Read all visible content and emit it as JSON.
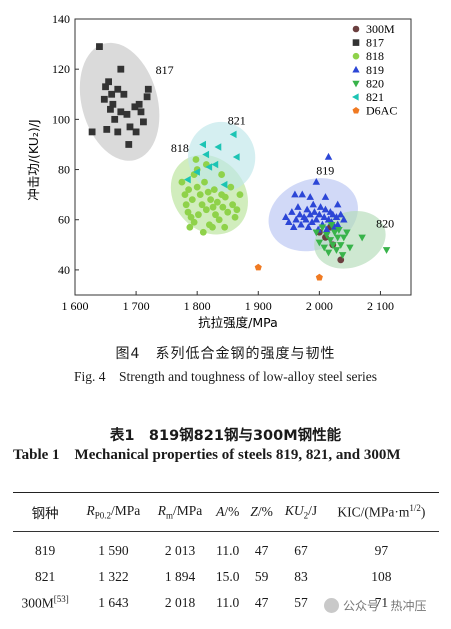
{
  "figure": {
    "caption_cn": "图4　系列低合金钢的强度与韧性",
    "caption_en": "Fig. 4　Strength and toughness of low-alloy steel series"
  },
  "chart_data": {
    "type": "scatter",
    "xlabel": "抗拉强度/MPa",
    "ylabel": "冲击功/(KU₂)/J",
    "xlim": [
      1600,
      2150
    ],
    "ylim": [
      30,
      140
    ],
    "x_ticks": [
      "1 600",
      "1 700",
      "1 800",
      "1 900",
      "2 000",
      "2 100"
    ],
    "y_ticks": [
      "40",
      "60",
      "80",
      "100",
      "120",
      "140"
    ],
    "legend_position": "top-right",
    "grid": false,
    "region_labels": [
      "817",
      "821",
      "818",
      "819",
      "820"
    ],
    "series": [
      {
        "name": "300M",
        "marker": "circle",
        "color": "#6b3f3f",
        "points": [
          [
            2018,
            57
          ],
          [
            2035,
            44
          ],
          [
            2022,
            50
          ],
          [
            2010,
            53
          ],
          [
            2000,
            55
          ]
        ]
      },
      {
        "name": "817",
        "marker": "square",
        "color": "#333333",
        "points": [
          [
            1640,
            129
          ],
          [
            1650,
            113
          ],
          [
            1655,
            115
          ],
          [
            1660,
            110
          ],
          [
            1648,
            108
          ],
          [
            1662,
            106
          ],
          [
            1670,
            112
          ],
          [
            1675,
            103
          ],
          [
            1680,
            110
          ],
          [
            1685,
            102
          ],
          [
            1690,
            97
          ],
          [
            1698,
            105
          ],
          [
            1705,
            106
          ],
          [
            1712,
            99
          ],
          [
            1718,
            109
          ],
          [
            1720,
            112
          ],
          [
            1700,
            95
          ],
          [
            1688,
            90
          ],
          [
            1665,
            100
          ],
          [
            1658,
            104
          ],
          [
            1652,
            96
          ],
          [
            1628,
            95
          ],
          [
            1670,
            95
          ],
          [
            1708,
            103
          ],
          [
            1675,
            120
          ]
        ]
      },
      {
        "name": "818",
        "marker": "circle",
        "color": "#8fd24a",
        "points": [
          [
            1775,
            75
          ],
          [
            1780,
            70
          ],
          [
            1782,
            66
          ],
          [
            1786,
            72
          ],
          [
            1790,
            61
          ],
          [
            1792,
            68
          ],
          [
            1795,
            78
          ],
          [
            1798,
            84
          ],
          [
            1800,
            73
          ],
          [
            1802,
            62
          ],
          [
            1805,
            70
          ],
          [
            1808,
            66
          ],
          [
            1812,
            75
          ],
          [
            1815,
            64
          ],
          [
            1818,
            71
          ],
          [
            1820,
            58
          ],
          [
            1822,
            68
          ],
          [
            1826,
            65
          ],
          [
            1828,
            72
          ],
          [
            1830,
            62
          ],
          [
            1833,
            67
          ],
          [
            1836,
            60
          ],
          [
            1840,
            70
          ],
          [
            1842,
            65
          ],
          [
            1846,
            69
          ],
          [
            1850,
            63
          ],
          [
            1855,
            73
          ],
          [
            1858,
            66
          ],
          [
            1862,
            61
          ],
          [
            1870,
            70
          ],
          [
            1788,
            57
          ],
          [
            1810,
            55
          ],
          [
            1800,
            80
          ],
          [
            1785,
            63
          ],
          [
            1795,
            59
          ],
          [
            1825,
            57
          ],
          [
            1845,
            57
          ],
          [
            1865,
            64
          ],
          [
            1815,
            82
          ],
          [
            1840,
            78
          ]
        ]
      },
      {
        "name": "819",
        "marker": "triangle-up",
        "color": "#2c46d6",
        "points": [
          [
            1945,
            61
          ],
          [
            1950,
            59
          ],
          [
            1955,
            63
          ],
          [
            1958,
            57
          ],
          [
            1962,
            60
          ],
          [
            1965,
            65
          ],
          [
            1968,
            62
          ],
          [
            1970,
            58
          ],
          [
            1972,
            70
          ],
          [
            1975,
            61
          ],
          [
            1978,
            60
          ],
          [
            1980,
            64
          ],
          [
            1982,
            57
          ],
          [
            1985,
            62
          ],
          [
            1988,
            59
          ],
          [
            1990,
            66
          ],
          [
            1992,
            63
          ],
          [
            1995,
            60
          ],
          [
            1998,
            56
          ],
          [
            2000,
            62
          ],
          [
            2002,
            65
          ],
          [
            2005,
            58
          ],
          [
            2008,
            61
          ],
          [
            2010,
            64
          ],
          [
            2012,
            56
          ],
          [
            2015,
            60
          ],
          [
            2018,
            63
          ],
          [
            2020,
            59
          ],
          [
            2022,
            62
          ],
          [
            2025,
            57
          ],
          [
            2028,
            61
          ],
          [
            2030,
            58
          ],
          [
            2035,
            62
          ],
          [
            2040,
            60
          ],
          [
            1960,
            70
          ],
          [
            1985,
            69
          ],
          [
            2010,
            69
          ],
          [
            2015,
            85
          ],
          [
            1995,
            75
          ],
          [
            2030,
            66
          ]
        ]
      },
      {
        "name": "820",
        "marker": "triangle-down",
        "color": "#38b34a",
        "points": [
          [
            1995,
            55
          ],
          [
            2000,
            51
          ],
          [
            2005,
            57
          ],
          [
            2008,
            49
          ],
          [
            2012,
            54
          ],
          [
            2015,
            47
          ],
          [
            2018,
            52
          ],
          [
            2020,
            58
          ],
          [
            2022,
            50
          ],
          [
            2025,
            55
          ],
          [
            2028,
            48
          ],
          [
            2030,
            53
          ],
          [
            2032,
            56
          ],
          [
            2035,
            50
          ],
          [
            2038,
            46
          ],
          [
            2040,
            53
          ],
          [
            2045,
            55
          ],
          [
            2050,
            49
          ],
          [
            2070,
            53
          ],
          [
            2110,
            48
          ]
        ]
      },
      {
        "name": "821",
        "marker": "triangle-left",
        "color": "#1cc4b4",
        "points": [
          [
            1860,
            94
          ],
          [
            1835,
            89
          ],
          [
            1815,
            86
          ],
          [
            1865,
            85
          ],
          [
            1820,
            81
          ],
          [
            1800,
            79
          ],
          [
            1785,
            76
          ],
          [
            1845,
            74
          ],
          [
            1830,
            82
          ],
          [
            1810,
            90
          ]
        ]
      },
      {
        "name": "D6AC",
        "marker": "pentagon",
        "color": "#f07a22",
        "points": [
          [
            1900,
            41
          ],
          [
            2000,
            37
          ]
        ]
      }
    ]
  },
  "table": {
    "title_cn": "表1　819钢821钢与300M钢性能",
    "title_en": "Table 1　Mechanical properties of steels 819, 821, and 300M",
    "headers": [
      "钢种",
      "R_P0.2/MPa",
      "R_m/MPa",
      "A/%",
      "Z/%",
      "KU_2/J",
      "KIC/(MPa·m^1/2)"
    ],
    "rows": [
      {
        "name": "819",
        "cells": [
          "1 590",
          "2 013",
          "11.0",
          "47",
          "67",
          "97"
        ]
      },
      {
        "name": "821",
        "cells": [
          "1 322",
          "1 894",
          "15.0",
          "59",
          "83",
          "108"
        ]
      },
      {
        "name": "300M",
        "ref": "[53]",
        "cells": [
          "1 643",
          "2 018",
          "11.0",
          "47",
          "57",
          "71"
        ]
      }
    ]
  },
  "watermark": {
    "text": "公众号 · 热冲压"
  }
}
